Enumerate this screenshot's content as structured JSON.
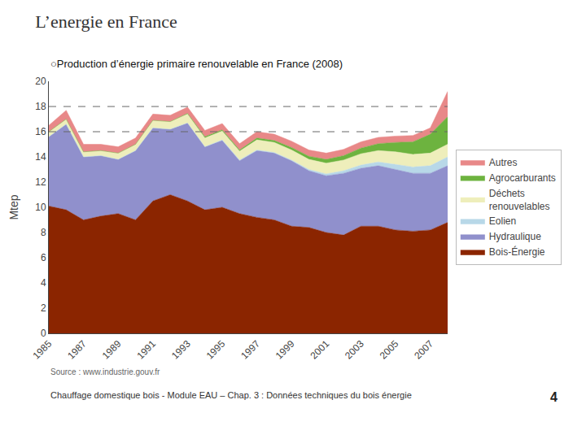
{
  "chart_data": {
    "type": "area",
    "title": "L’energie en France",
    "subtitle": "○Production d’énergie primaire renouvelable en France (2008)",
    "y_label": "Mtep",
    "annotations": [
      "Source : www.industrie.gouv.fr",
      "Chauffage domestique bois - Module EAU – Chap. 3 : Données techniques du bois énergie",
      "4"
    ],
    "x": [
      1985,
      1986,
      1987,
      1988,
      1989,
      1990,
      1991,
      1992,
      1993,
      1994,
      1995,
      1996,
      1997,
      1998,
      1999,
      2000,
      2001,
      2002,
      2003,
      2004,
      2005,
      2006,
      2007,
      2008
    ],
    "series": [
      {
        "name": "Bois-Énergie",
        "color": "#8B2500",
        "values": [
          10.1,
          9.8,
          9.0,
          9.3,
          9.5,
          9.0,
          10.5,
          11.0,
          10.5,
          9.8,
          10.0,
          9.5,
          9.2,
          9.0,
          8.5,
          8.4,
          8.0,
          7.8,
          8.5,
          8.5,
          8.2,
          8.1,
          8.2,
          8.8
        ]
      },
      {
        "name": "Hydraulique",
        "color": "#9090CC",
        "values": [
          5.5,
          6.8,
          5.0,
          4.8,
          4.3,
          5.5,
          5.8,
          5.2,
          6.2,
          5.0,
          5.3,
          4.2,
          5.3,
          5.3,
          5.2,
          4.5,
          4.5,
          4.9,
          4.6,
          4.8,
          4.8,
          4.6,
          4.5,
          4.5
        ]
      },
      {
        "name": "Eolien",
        "color": "#B8D8E8",
        "values": [
          0.0,
          0.0,
          0.0,
          0.0,
          0.0,
          0.0,
          0.0,
          0.0,
          0.0,
          0.0,
          0.05,
          0.05,
          0.05,
          0.05,
          0.05,
          0.1,
          0.15,
          0.2,
          0.25,
          0.3,
          0.4,
          0.5,
          0.6,
          0.7
        ]
      },
      {
        "name": "Déchets\nrenouvelables",
        "color": "#EEEEBB",
        "values": [
          0.4,
          0.4,
          0.4,
          0.4,
          0.5,
          0.5,
          0.6,
          0.6,
          0.7,
          0.7,
          0.7,
          0.7,
          0.8,
          0.8,
          0.8,
          0.8,
          0.85,
          0.85,
          0.9,
          0.9,
          1.0,
          1.0,
          1.0,
          1.0
        ]
      },
      {
        "name": "Agrocarburants",
        "color": "#6DB33F",
        "values": [
          0.0,
          0.0,
          0.0,
          0.0,
          0.0,
          0.0,
          0.0,
          0.0,
          0.05,
          0.1,
          0.1,
          0.1,
          0.15,
          0.15,
          0.2,
          0.25,
          0.3,
          0.35,
          0.45,
          0.55,
          0.75,
          1.0,
          1.5,
          2.2
        ]
      },
      {
        "name": "Autres",
        "color": "#E88888",
        "values": [
          0.5,
          0.7,
          0.6,
          0.5,
          0.5,
          0.5,
          0.5,
          0.5,
          0.5,
          0.5,
          0.5,
          0.5,
          0.5,
          0.5,
          0.5,
          0.5,
          0.5,
          0.5,
          0.5,
          0.5,
          0.5,
          0.5,
          0.5,
          2.0
        ]
      }
    ],
    "reference_lines": [
      16,
      18
    ],
    "xlim": [
      1985,
      2008
    ],
    "xticks": [
      1985,
      1987,
      1989,
      1991,
      1993,
      1995,
      1997,
      1999,
      2001,
      2003,
      2005,
      2007
    ],
    "ylim": [
      0,
      20
    ],
    "yticks": [
      0,
      2,
      4,
      6,
      8,
      10,
      12,
      14,
      16,
      18,
      20
    ],
    "stacked": true,
    "grid": false,
    "legend": "right"
  }
}
